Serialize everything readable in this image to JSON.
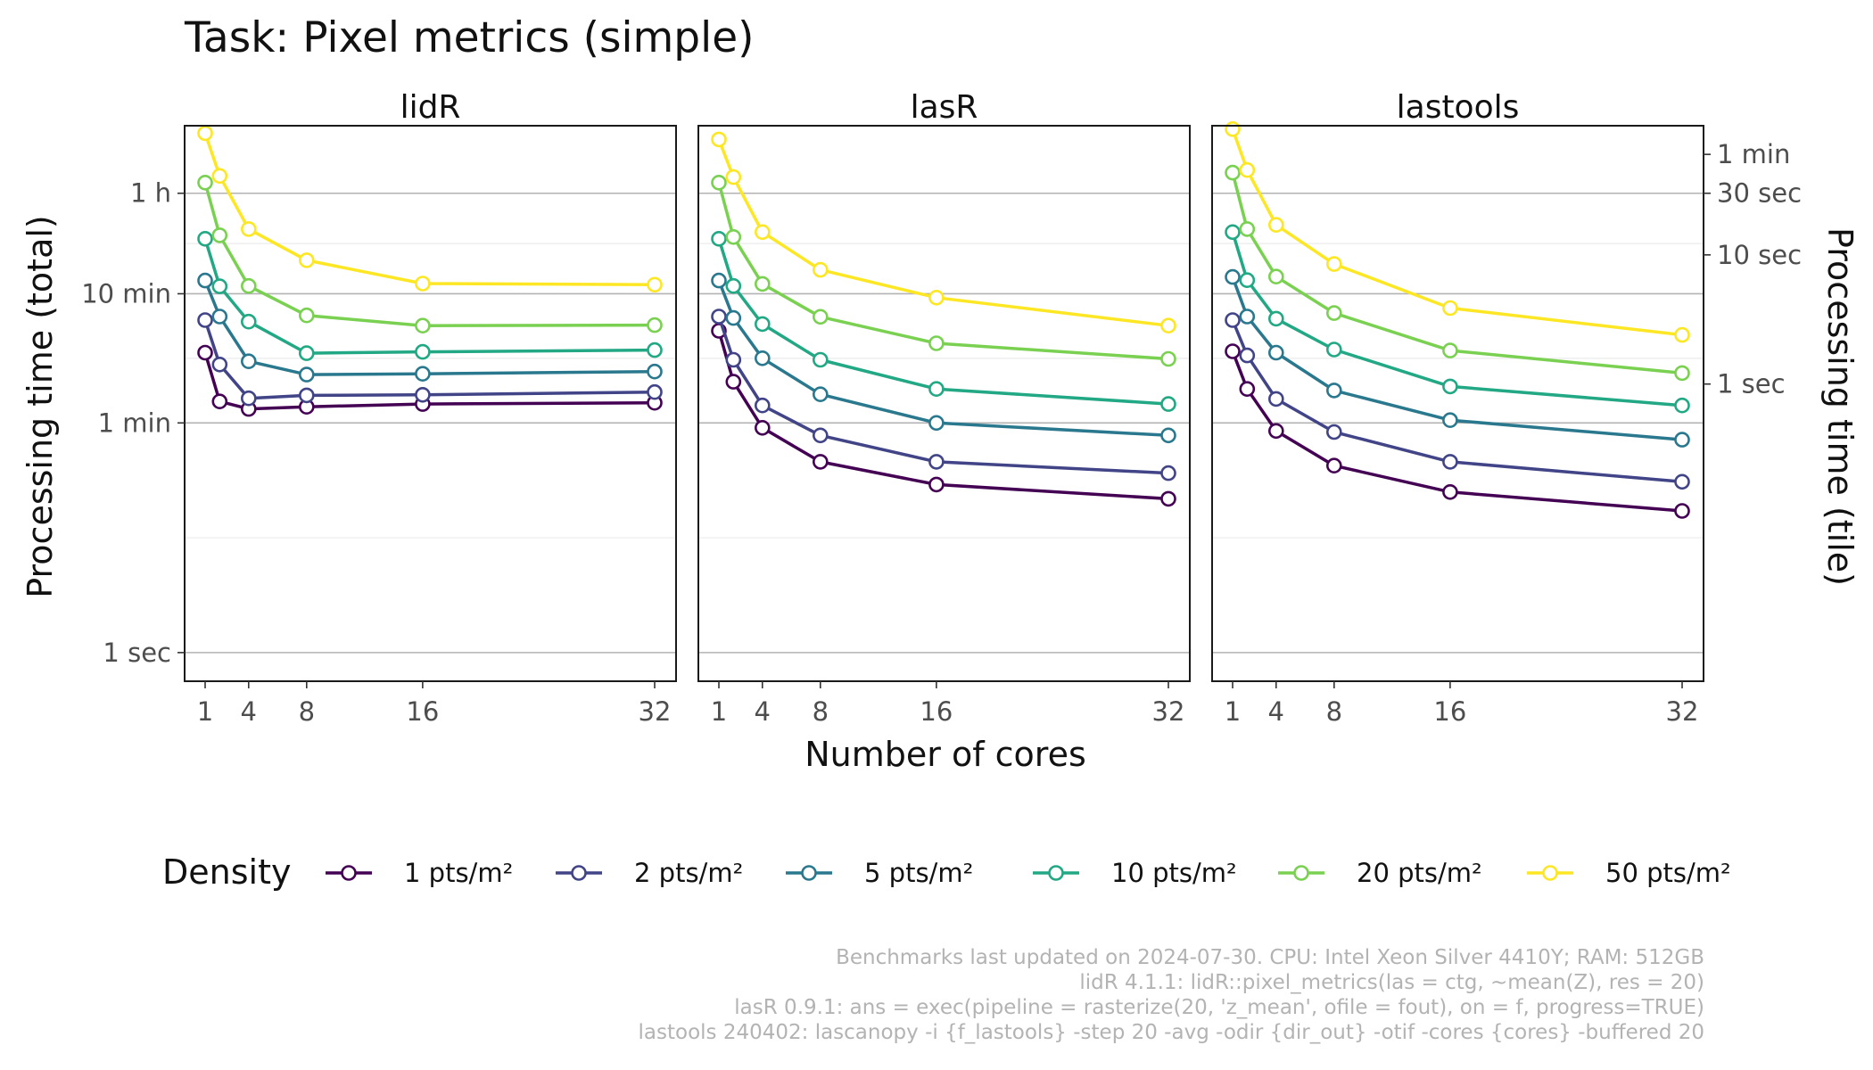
{
  "chart_data": {
    "type": "line",
    "title": "Task: Pixel metrics (simple)",
    "xlabel": "Number of cores",
    "ylabel_left": "Processing time (total)",
    "ylabel_right": "Processing time (tile)",
    "x": [
      1,
      2,
      4,
      8,
      16,
      32
    ],
    "x_ticks": [
      1,
      4,
      8,
      16,
      32
    ],
    "y_scale": "log",
    "y_unit": "seconds",
    "ylim": [
      0.6,
      12000
    ],
    "y_ticks_left": [
      {
        "value": 1,
        "label": "1 sec"
      },
      {
        "value": 60,
        "label": "1 min"
      },
      {
        "value": 600,
        "label": "10 min"
      },
      {
        "value": 3600,
        "label": "1 h"
      }
    ],
    "y_ticks_right": [
      {
        "value": 1,
        "label": "1 sec"
      },
      {
        "value": 10,
        "label": "10 sec"
      },
      {
        "value": 30,
        "label": "30 sec"
      },
      {
        "value": 60,
        "label": "1 min"
      }
    ],
    "right_axis_factor": 120,
    "grid": true,
    "legend": {
      "title": "Density",
      "position": "bottom"
    },
    "facets": [
      {
        "name": "lidR",
        "series": [
          {
            "name": "1 pts/m²",
            "color": "#440154",
            "values": [
              210,
              88,
              77,
              80,
              84,
              86
            ]
          },
          {
            "name": "2 pts/m²",
            "color": "#414487",
            "values": [
              375,
              170,
              93,
              98,
              99,
              104
            ]
          },
          {
            "name": "5 pts/m²",
            "color": "#2a788e",
            "values": [
              760,
              400,
              180,
              142,
              144,
              150
            ]
          },
          {
            "name": "10 pts/m²",
            "color": "#22a884",
            "values": [
              1600,
              685,
              365,
              208,
              213,
              220
            ]
          },
          {
            "name": "20 pts/m²",
            "color": "#7ad151",
            "values": [
              4350,
              1700,
              690,
              408,
              340,
              343
            ]
          },
          {
            "name": "50 pts/m²",
            "color": "#fde725",
            "values": [
              10500,
              4900,
              1900,
              1090,
              720,
              705
            ]
          }
        ]
      },
      {
        "name": "lasR",
        "series": [
          {
            "name": "1 pts/m²",
            "color": "#440154",
            "values": [
              310,
              125,
              55,
              30,
              20,
              15.5
            ]
          },
          {
            "name": "2 pts/m²",
            "color": "#414487",
            "values": [
              400,
              185,
              82,
              48,
              30,
              24.5
            ]
          },
          {
            "name": "5 pts/m²",
            "color": "#2a788e",
            "values": [
              760,
              390,
              190,
              100,
              60,
              48
            ]
          },
          {
            "name": "10 pts/m²",
            "color": "#22a884",
            "values": [
              1600,
              690,
              350,
              185,
              110,
              84
            ]
          },
          {
            "name": "20 pts/m²",
            "color": "#7ad151",
            "values": [
              4350,
              1650,
              715,
              398,
              248,
              188
            ]
          },
          {
            "name": "50 pts/m²",
            "color": "#fde725",
            "values": [
              9400,
              4800,
              1800,
              920,
              560,
              340
            ]
          }
        ]
      },
      {
        "name": "lastools",
        "series": [
          {
            "name": "1 pts/m²",
            "color": "#440154",
            "values": [
              215,
              110,
              52,
              28,
              17.5,
              12.5
            ]
          },
          {
            "name": "2 pts/m²",
            "color": "#414487",
            "values": [
              375,
              200,
              92,
              51,
              30,
              21
            ]
          },
          {
            "name": "5 pts/m²",
            "color": "#2a788e",
            "values": [
              810,
              400,
              210,
              107,
              63,
              44.5
            ]
          },
          {
            "name": "10 pts/m²",
            "color": "#22a884",
            "values": [
              1800,
              765,
              385,
              222,
              115,
              82
            ]
          },
          {
            "name": "20 pts/m²",
            "color": "#7ad151",
            "values": [
              5200,
              1900,
              815,
              425,
              218,
              146
            ]
          },
          {
            "name": "50 pts/m²",
            "color": "#fde725",
            "values": [
              11300,
              5450,
              2050,
              1020,
              465,
              288
            ]
          }
        ]
      }
    ]
  },
  "caption": [
    "Benchmarks last updated on 2024-07-30. CPU: Intel Xeon Silver 4410Y; RAM: 512GB",
    "lidR 4.1.1: lidR::pixel_metrics(las = ctg, ~mean(Z), res = 20)",
    "lasR 0.9.1: ans = exec(pipeline = rasterize(20, 'z_mean', ofile = fout), on = f, progress=TRUE)",
    "lastools 240402: lascanopy -i {f_lastools} -step 20 -avg -odir {dir_out} -otif -cores {cores} -buffered 20"
  ]
}
